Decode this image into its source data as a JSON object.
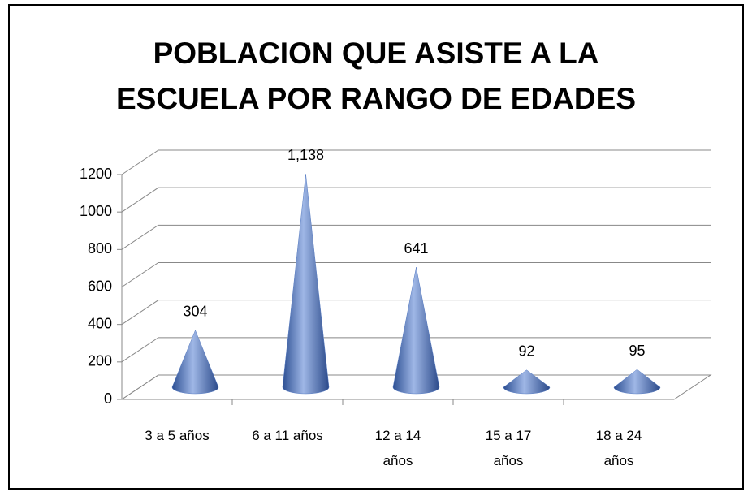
{
  "chart_data": {
    "type": "cone",
    "title": "POBLACION QUE ASISTE A LA ESCUELA POR RANGO DE EDADES",
    "categories": [
      "3 a 5 años",
      "6 a 11 años",
      "12 a 14 años",
      "15 a 17 años",
      "18 a 24 años"
    ],
    "values": [
      304,
      1138,
      641,
      92,
      95
    ],
    "value_labels": [
      "304",
      "1,138",
      "641",
      "92",
      "95"
    ],
    "color": "#5b7fc4",
    "ylim": [
      0,
      1200
    ],
    "yticks": [
      0,
      200,
      400,
      600,
      800,
      1000,
      1200
    ],
    "grid": true
  }
}
